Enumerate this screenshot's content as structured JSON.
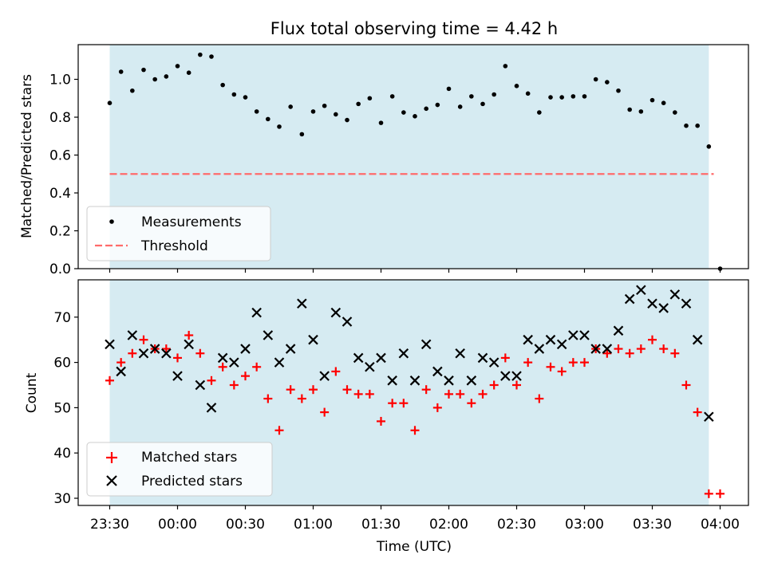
{
  "chart_data": [
    {
      "type": "scatter",
      "title": "Flux total observing time = 4.42 h",
      "xlabel": "",
      "ylabel": "Matched/Predicted stars",
      "ylim": [
        0,
        1.18
      ],
      "yticks": [
        "0.0",
        "0.2",
        "0.4",
        "0.6",
        "0.8",
        "1.0"
      ],
      "threshold": 0.5,
      "shaded_range_min": [
        0,
        265
      ],
      "legend_position": "lower-left",
      "legend": [
        "Measurements",
        "Threshold"
      ],
      "series": [
        {
          "name": "Measurements",
          "color": "#000000",
          "x_min": [
            0,
            5,
            10,
            15,
            20,
            25,
            30,
            35,
            40,
            45,
            50,
            55,
            60,
            65,
            70,
            75,
            80,
            85,
            90,
            95,
            100,
            105,
            110,
            115,
            120,
            125,
            130,
            135,
            140,
            145,
            150,
            155,
            160,
            165,
            170,
            175,
            180,
            185,
            190,
            195,
            200,
            205,
            210,
            215,
            220,
            225,
            230,
            235,
            240,
            245,
            250,
            255,
            260,
            265,
            270
          ],
          "values": [
            0.875,
            1.04,
            0.94,
            1.05,
            1.0,
            1.015,
            1.07,
            1.035,
            1.13,
            1.12,
            0.97,
            0.92,
            0.905,
            0.83,
            0.79,
            0.75,
            0.855,
            0.71,
            0.83,
            0.86,
            0.815,
            0.785,
            0.87,
            0.9,
            0.77,
            0.91,
            0.825,
            0.805,
            0.845,
            0.865,
            0.95,
            0.855,
            0.91,
            0.87,
            0.92,
            1.07,
            0.965,
            0.925,
            0.825,
            0.905,
            0.905,
            0.91,
            0.91,
            1.0,
            0.985,
            0.94,
            0.84,
            0.83,
            0.89,
            0.875,
            0.825,
            0.755,
            0.755,
            0.645,
            0.0
          ]
        },
        {
          "name": "Threshold",
          "color": "#ff6b6b",
          "values": [
            0.5
          ]
        }
      ]
    },
    {
      "type": "scatter",
      "title": "",
      "xlabel": "Time (UTC)",
      "ylabel": "Count",
      "ylim": [
        28.5,
        78.5
      ],
      "yticks": [
        "30",
        "40",
        "50",
        "60",
        "70"
      ],
      "xticks": [
        "23:30",
        "00:00",
        "00:30",
        "01:00",
        "01:30",
        "02:00",
        "02:30",
        "03:00",
        "03:30",
        "04:00"
      ],
      "shaded_range_min": [
        0,
        265
      ],
      "legend_position": "lower-left",
      "legend": [
        "Matched stars",
        "Predicted stars"
      ],
      "series": [
        {
          "name": "Matched stars",
          "color": "#ff0000",
          "marker": "+",
          "x_min": [
            0,
            5,
            10,
            15,
            20,
            25,
            30,
            35,
            40,
            45,
            50,
            55,
            60,
            65,
            70,
            75,
            80,
            85,
            90,
            95,
            100,
            105,
            110,
            115,
            120,
            125,
            130,
            135,
            140,
            145,
            150,
            155,
            160,
            165,
            170,
            175,
            180,
            185,
            190,
            195,
            200,
            205,
            210,
            215,
            220,
            225,
            230,
            235,
            240,
            245,
            250,
            255,
            260,
            265,
            270
          ],
          "values": [
            56,
            60,
            62,
            65,
            63,
            63,
            61,
            66,
            62,
            56,
            59,
            55,
            57,
            59,
            52,
            45,
            54,
            52,
            54,
            49,
            58,
            54,
            53,
            53,
            47,
            51,
            51,
            45,
            54,
            50,
            53,
            53,
            51,
            53,
            55,
            61,
            55,
            60,
            52,
            59,
            58,
            60,
            60,
            63,
            62,
            63,
            62,
            63,
            65,
            63,
            62,
            55,
            49,
            31,
            31
          ]
        },
        {
          "name": "Predicted stars",
          "color": "#000000",
          "marker": "x",
          "x_min": [
            0,
            5,
            10,
            15,
            20,
            25,
            30,
            35,
            40,
            45,
            50,
            55,
            60,
            65,
            70,
            75,
            80,
            85,
            90,
            95,
            100,
            105,
            110,
            115,
            120,
            125,
            130,
            135,
            140,
            145,
            150,
            155,
            160,
            165,
            170,
            175,
            180,
            185,
            190,
            195,
            200,
            205,
            210,
            215,
            220,
            225,
            230,
            235,
            240,
            245,
            250,
            255,
            260,
            265
          ],
          "values": [
            64,
            58,
            66,
            62,
            63,
            62,
            57,
            64,
            55,
            50,
            61,
            60,
            63,
            71,
            66,
            60,
            63,
            73,
            65,
            57,
            71,
            69,
            61,
            59,
            61,
            56,
            62,
            56,
            64,
            58,
            56,
            62,
            56,
            61,
            60,
            57,
            57,
            65,
            63,
            65,
            64,
            66,
            66,
            63,
            63,
            67,
            74,
            76,
            73,
            72,
            75,
            73,
            65,
            48
          ]
        }
      ]
    }
  ]
}
